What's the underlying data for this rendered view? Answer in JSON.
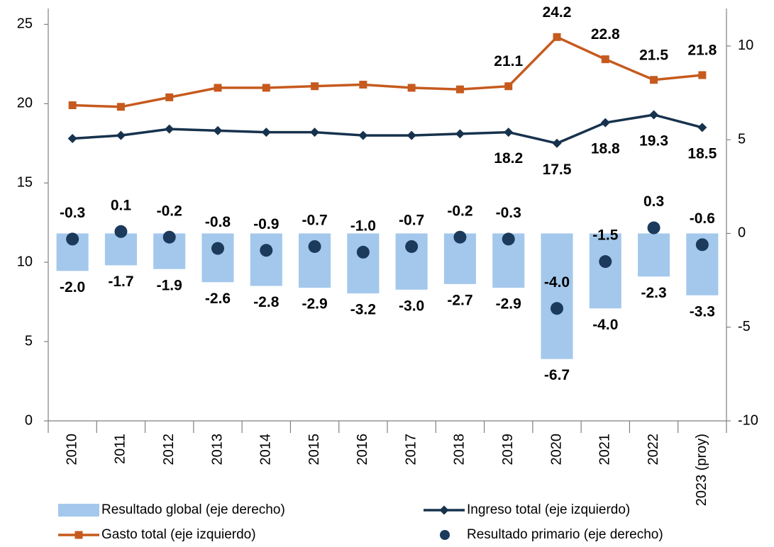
{
  "chart_data": {
    "type": "combo",
    "categories": [
      "2010",
      "2011",
      "2012",
      "2013",
      "2014",
      "2015",
      "2016",
      "2017",
      "2018",
      "2019",
      "2020",
      "2021",
      "2022",
      "2023 (proy)"
    ],
    "ylim": [
      0,
      26
    ],
    "yticks": [
      0,
      5,
      10,
      15,
      20,
      25
    ],
    "y2lim": [
      -10,
      12
    ],
    "y2ticks": [
      -10,
      -5,
      0,
      5,
      10
    ],
    "grid": false,
    "series": [
      {
        "name": "Resultado global (eje derecho)",
        "type": "bar",
        "axis": "y2",
        "color": "#a3c8ec",
        "values": [
          -2.0,
          -1.7,
          -1.9,
          -2.6,
          -2.8,
          -2.9,
          -3.2,
          -3.0,
          -2.7,
          -2.9,
          -6.7,
          -4.0,
          -2.3,
          -3.3
        ],
        "value_labels": [
          "-2.0",
          "-1.7",
          "-1.9",
          "-2.6",
          "-2.8",
          "-2.9",
          "-3.2",
          "-3.0",
          "-2.7",
          "-2.9",
          "-6.7",
          "-4.0",
          "-2.3",
          "-3.3"
        ]
      },
      {
        "name": "Ingreso total (eje izquierdo)",
        "type": "line",
        "marker": "diamond",
        "color": "#17324d",
        "values": [
          17.8,
          18.0,
          18.4,
          18.3,
          18.2,
          18.2,
          18.0,
          18.0,
          18.1,
          18.2,
          17.5,
          18.8,
          19.3,
          18.5
        ],
        "value_labels": [
          null,
          null,
          null,
          null,
          null,
          null,
          null,
          null,
          null,
          "18.2",
          "17.5",
          "18.8",
          "19.3",
          "18.5"
        ]
      },
      {
        "name": "Gasto total (eje izquierdo)",
        "type": "line",
        "marker": "square",
        "color": "#c65a1e",
        "values": [
          19.9,
          19.8,
          20.4,
          21.0,
          21.0,
          21.1,
          21.2,
          21.0,
          20.9,
          21.1,
          24.2,
          22.8,
          21.5,
          21.8
        ],
        "value_labels": [
          null,
          null,
          null,
          null,
          null,
          null,
          null,
          null,
          null,
          "21.1",
          "24.2",
          "22.8",
          "21.5",
          "21.8"
        ]
      },
      {
        "name": "Resultado primario (eje derecho)",
        "type": "scatter",
        "axis": "y2",
        "color": "#1b3a5c",
        "values": [
          -0.3,
          0.1,
          -0.2,
          -0.8,
          -0.9,
          -0.7,
          -1.0,
          -0.7,
          -0.2,
          -0.3,
          -4.0,
          -1.5,
          0.3,
          -0.6
        ],
        "value_labels": [
          "-0.3",
          "0.1",
          "-0.2",
          "-0.8",
          "-0.9",
          "-0.7",
          "-1.0",
          "-0.7",
          "-0.2",
          "-0.3",
          "-4.0",
          "-1.5",
          "0.3",
          "-0.6"
        ]
      }
    ]
  }
}
